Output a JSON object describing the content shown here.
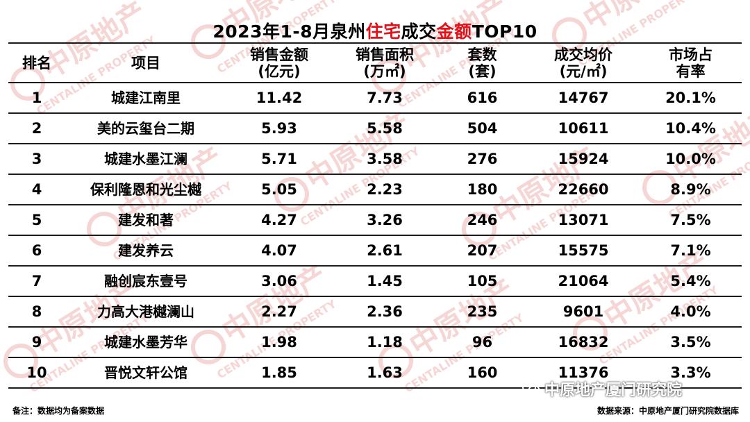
{
  "title": {
    "prefix": "2023年1-8月泉州",
    "highlight1": "住宅",
    "middle": "成交",
    "highlight2": "金额",
    "suffix": "TOP10"
  },
  "headers": [
    [
      "排名"
    ],
    [
      "项目"
    ],
    [
      "销售金额",
      "(亿元)"
    ],
    [
      "销售面积",
      "(万㎡)"
    ],
    [
      "套数",
      "(套)"
    ],
    [
      "成交均价",
      "(元/㎡)"
    ],
    [
      "市场占",
      "有率"
    ]
  ],
  "rows": [
    [
      "1",
      "城建江南里",
      "11.42",
      "7.73",
      "616",
      "14767",
      "20.1%"
    ],
    [
      "2",
      "美的云玺台二期",
      "5.93",
      "5.58",
      "504",
      "10611",
      "10.4%"
    ],
    [
      "3",
      "城建水墨江澜",
      "5.71",
      "3.58",
      "276",
      "15924",
      "10.0%"
    ],
    [
      "4",
      "保利隆恩和光尘樾",
      "5.05",
      "2.23",
      "180",
      "22660",
      "8.9%"
    ],
    [
      "5",
      "建发和著",
      "4.27",
      "3.26",
      "246",
      "13071",
      "7.5%"
    ],
    [
      "6",
      "建发养云",
      "4.07",
      "2.61",
      "207",
      "15575",
      "7.1%"
    ],
    [
      "7",
      "融创宸东壹号",
      "3.06",
      "1.45",
      "105",
      "21064",
      "5.4%"
    ],
    [
      "8",
      "力高大港樾澜山",
      "2.27",
      "2.36",
      "235",
      "9601",
      "4.0%"
    ],
    [
      "9",
      "城建水墨芳华",
      "1.98",
      "1.18",
      "96",
      "16832",
      "3.5%"
    ],
    [
      "10",
      "晋悦文轩公馆",
      "1.85",
      "1.63",
      "160",
      "11376",
      "3.3%"
    ]
  ],
  "footer": {
    "note": "备注：数据均为备案数据",
    "source": "数据来源：中原地产厦门研究院数据库"
  },
  "wechat": {
    "account": "中原地产厦门研究院",
    "icon": "wechat-icon"
  },
  "watermark": {
    "logo_text": "中原地产",
    "brand_text": "CENTALINE PROPERTY"
  },
  "colors": {
    "highlight": "#e0131b",
    "watermark": "#f6d5d5",
    "border": "#1a1a1a"
  }
}
